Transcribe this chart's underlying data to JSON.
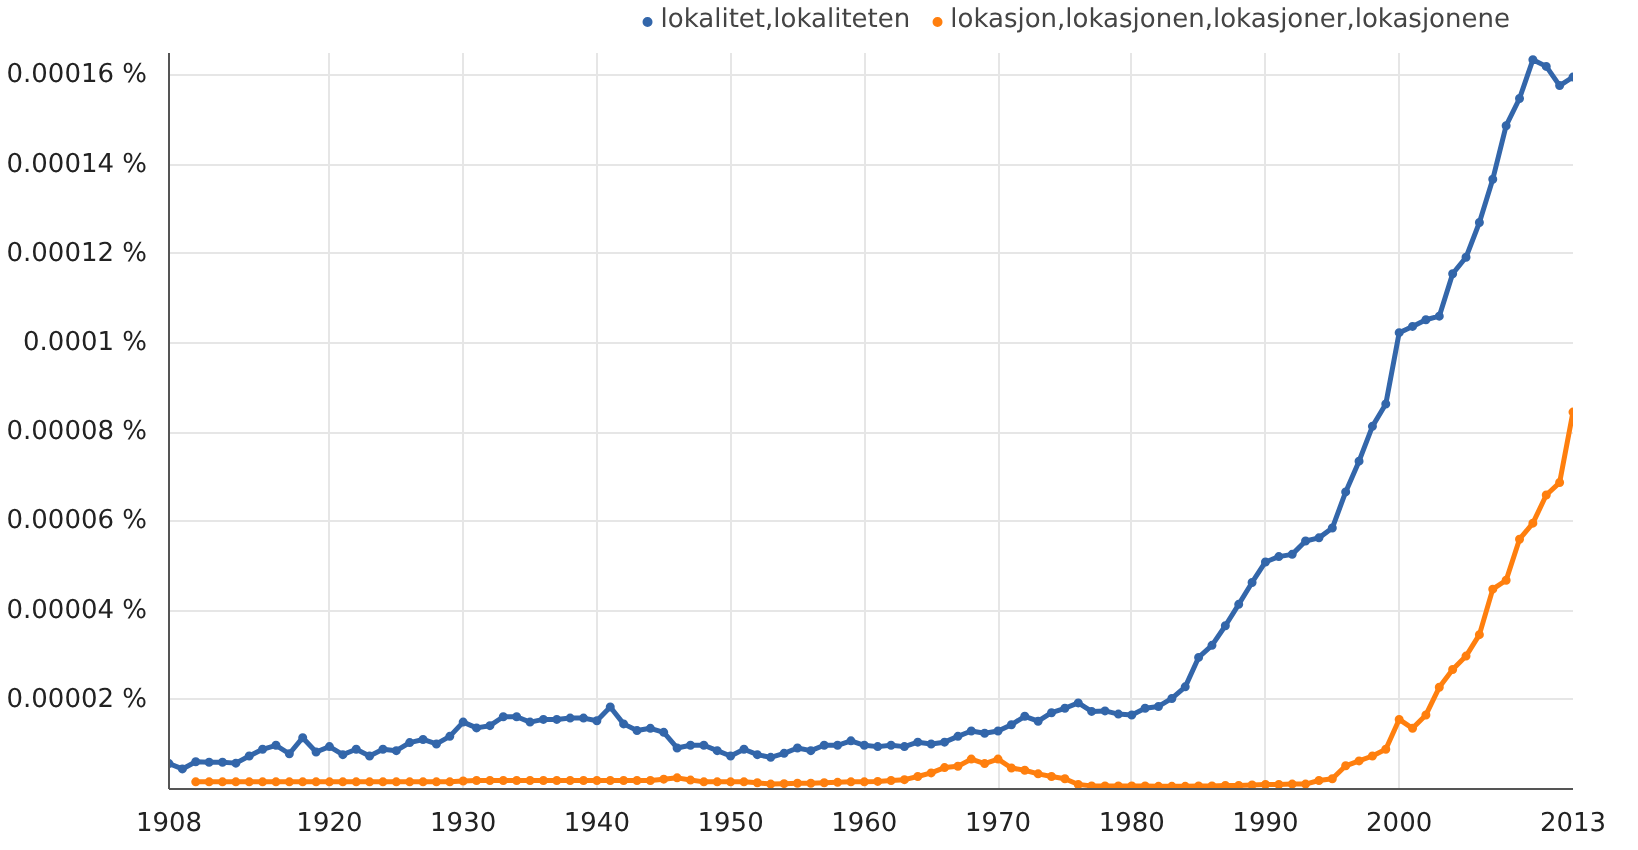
{
  "chart_data": {
    "type": "line",
    "x": [
      1908,
      1909,
      1910,
      1911,
      1912,
      1913,
      1914,
      1915,
      1916,
      1917,
      1918,
      1919,
      1920,
      1921,
      1922,
      1923,
      1924,
      1925,
      1926,
      1927,
      1928,
      1929,
      1930,
      1931,
      1932,
      1933,
      1934,
      1935,
      1936,
      1937,
      1938,
      1939,
      1940,
      1941,
      1942,
      1943,
      1944,
      1945,
      1946,
      1947,
      1948,
      1949,
      1950,
      1951,
      1952,
      1953,
      1954,
      1955,
      1956,
      1957,
      1958,
      1959,
      1960,
      1961,
      1962,
      1963,
      1964,
      1965,
      1966,
      1967,
      1968,
      1969,
      1970,
      1971,
      1972,
      1973,
      1974,
      1975,
      1976,
      1977,
      1978,
      1979,
      1980,
      1981,
      1982,
      1983,
      1984,
      1985,
      1986,
      1987,
      1988,
      1989,
      1990,
      1991,
      1992,
      1993,
      1994,
      1995,
      1996,
      1997,
      1998,
      1999,
      2000,
      2001,
      2002,
      2003,
      2004,
      2005,
      2006,
      2007,
      2008,
      2009,
      2010,
      2011,
      2012,
      2013
    ],
    "series": [
      {
        "name": "lokalitet,lokaliteten",
        "color": "#3366aa",
        "values": [
          5.7e-06,
          4.5e-06,
          6.1e-06,
          6e-06,
          6e-06,
          5.8e-06,
          7.4e-06,
          8.9e-06,
          9.8e-06,
          7.9e-06,
          1.15e-05,
          8.3e-06,
          9.5e-06,
          7.7e-06,
          8.9e-06,
          7.4e-06,
          8.9e-06,
          8.6e-06,
          1.04e-05,
          1.11e-05,
          1.01e-05,
          1.18e-05,
          1.5e-05,
          1.37e-05,
          1.42e-05,
          1.62e-05,
          1.62e-05,
          1.5e-05,
          1.56e-05,
          1.56e-05,
          1.59e-05,
          1.59e-05,
          1.53e-05,
          1.84e-05,
          1.46e-05,
          1.31e-05,
          1.36e-05,
          1.27e-05,
          9.2e-06,
          9.8e-06,
          9.8e-06,
          8.6e-06,
          7.4e-06,
          8.9e-06,
          7.7e-06,
          7.1e-06,
          8e-06,
          9.2e-06,
          8.6e-06,
          9.8e-06,
          9.8e-06,
          1.08e-05,
          9.8e-06,
          9.5e-06,
          9.8e-06,
          9.5e-06,
          1.05e-05,
          1.01e-05,
          1.05e-05,
          1.18e-05,
          1.3e-05,
          1.25e-05,
          1.3e-05,
          1.44e-05,
          1.63e-05,
          1.52e-05,
          1.71e-05,
          1.81e-05,
          1.93e-05,
          1.74e-05,
          1.75e-05,
          1.68e-05,
          1.66e-05,
          1.81e-05,
          1.85e-05,
          2.03e-05,
          2.29e-05,
          2.95e-05,
          3.22e-05,
          3.66e-05,
          4.14e-05,
          4.63e-05,
          5.09e-05,
          5.21e-05,
          5.26e-05,
          5.56e-05,
          5.63e-05,
          5.85e-05,
          6.66e-05,
          7.35e-05,
          8.13e-05,
          8.63e-05,
          0.0001023,
          0.0001037,
          0.0001052,
          0.000106,
          0.0001155,
          0.0001192,
          0.000127,
          0.0001367,
          0.0001487,
          0.0001548,
          0.0001635,
          0.000162,
          0.0001577,
          0.0001596
        ]
      },
      {
        "name": "lokasjon,lokasjonen,lokasjoner,lokasjonene",
        "color": "#ff7f0e",
        "values": [
          null,
          null,
          1.6e-06,
          1.6e-06,
          1.6e-06,
          1.6e-06,
          1.6e-06,
          1.6e-06,
          1.6e-06,
          1.6e-06,
          1.6e-06,
          1.6e-06,
          1.6e-06,
          1.6e-06,
          1.6e-06,
          1.6e-06,
          1.6e-06,
          1.6e-06,
          1.6e-06,
          1.6e-06,
          1.6e-06,
          1.6e-06,
          1.8e-06,
          1.9e-06,
          1.9e-06,
          1.9e-06,
          1.9e-06,
          1.9e-06,
          1.9e-06,
          1.9e-06,
          1.9e-06,
          1.9e-06,
          1.9e-06,
          1.9e-06,
          1.9e-06,
          1.9e-06,
          1.9e-06,
          2.2e-06,
          2.5e-06,
          2e-06,
          1.6e-06,
          1.6e-06,
          1.6e-06,
          1.6e-06,
          1.4e-06,
          1.1e-06,
          1.2e-06,
          1.3e-06,
          1.3e-06,
          1.4e-06,
          1.5e-06,
          1.6e-06,
          1.6e-06,
          1.7e-06,
          1.9e-06,
          2.1e-06,
          2.8e-06,
          3.6e-06,
          4.8e-06,
          5.1e-06,
          6.7e-06,
          5.7e-06,
          6.7e-06,
          4.7e-06,
          4.2e-06,
          3.4e-06,
          2.8e-06,
          2.3e-06,
          1e-06,
          7e-07,
          7e-07,
          7e-07,
          7e-07,
          7e-07,
          6e-07,
          6e-07,
          6e-07,
          7e-07,
          7e-07,
          8e-07,
          8e-07,
          9e-07,
          1e-06,
          1e-06,
          1.1e-06,
          1.1e-06,
          1.9e-06,
          2.3e-06,
          5.2e-06,
          6.3e-06,
          7.4e-06,
          8.9e-06,
          1.56e-05,
          1.36e-05,
          1.66e-05,
          2.28e-05,
          2.68e-05,
          2.98e-05,
          3.46e-05,
          4.48e-05,
          4.68e-05,
          5.6e-05,
          5.96e-05,
          6.59e-05,
          6.87e-05,
          8.45e-05
        ]
      }
    ],
    "xlim": [
      1908,
      2013
    ],
    "ylim": [
      0,
      0.000165
    ],
    "xticks": [
      1908,
      1920,
      1930,
      1940,
      1950,
      1960,
      1970,
      1980,
      1990,
      2000,
      2013
    ],
    "yticks": [
      {
        "value": 2e-05,
        "label": "0.00002 %"
      },
      {
        "value": 4e-05,
        "label": "0.00004 %"
      },
      {
        "value": 6e-05,
        "label": "0.00006 %"
      },
      {
        "value": 8e-05,
        "label": "0.00008 %"
      },
      {
        "value": 0.0001,
        "label": "0.0001 %"
      },
      {
        "value": 0.00012,
        "label": "0.00012 %"
      },
      {
        "value": 0.00014,
        "label": "0.00014 %"
      },
      {
        "value": 0.00016,
        "label": "0.00016 %"
      }
    ],
    "grid": true,
    "legend": "top",
    "marker": "circle",
    "line_style": "solid"
  }
}
